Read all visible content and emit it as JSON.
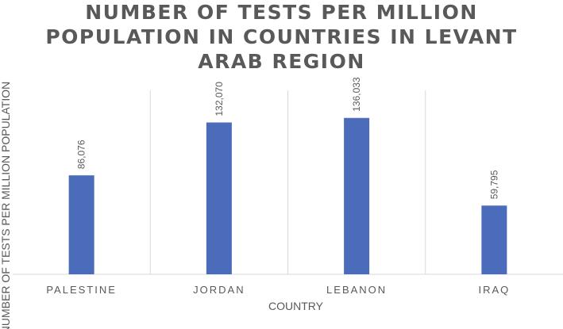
{
  "chart_data": {
    "type": "bar",
    "title_lines": [
      "NUMBER OF TESTS PER MILLION",
      "POPULATION IN COUNTRIES IN LEVANT",
      "ARAB REGION"
    ],
    "categories": [
      "PALESTINE",
      "JORDAN",
      "LEBANON",
      "IRAQ"
    ],
    "values": [
      86076,
      132070,
      136033,
      59795
    ],
    "data_labels": [
      "86,076",
      "132,070",
      "136,033",
      "59,795"
    ],
    "xlabel": "COUNTRY",
    "ylabel": "NUMBER OF TESTS PER MILLION POPULATION",
    "ylim": [
      0,
      160000
    ],
    "bar_color": "#4a6cbb",
    "grid": "vertical separators",
    "legend": "none"
  }
}
